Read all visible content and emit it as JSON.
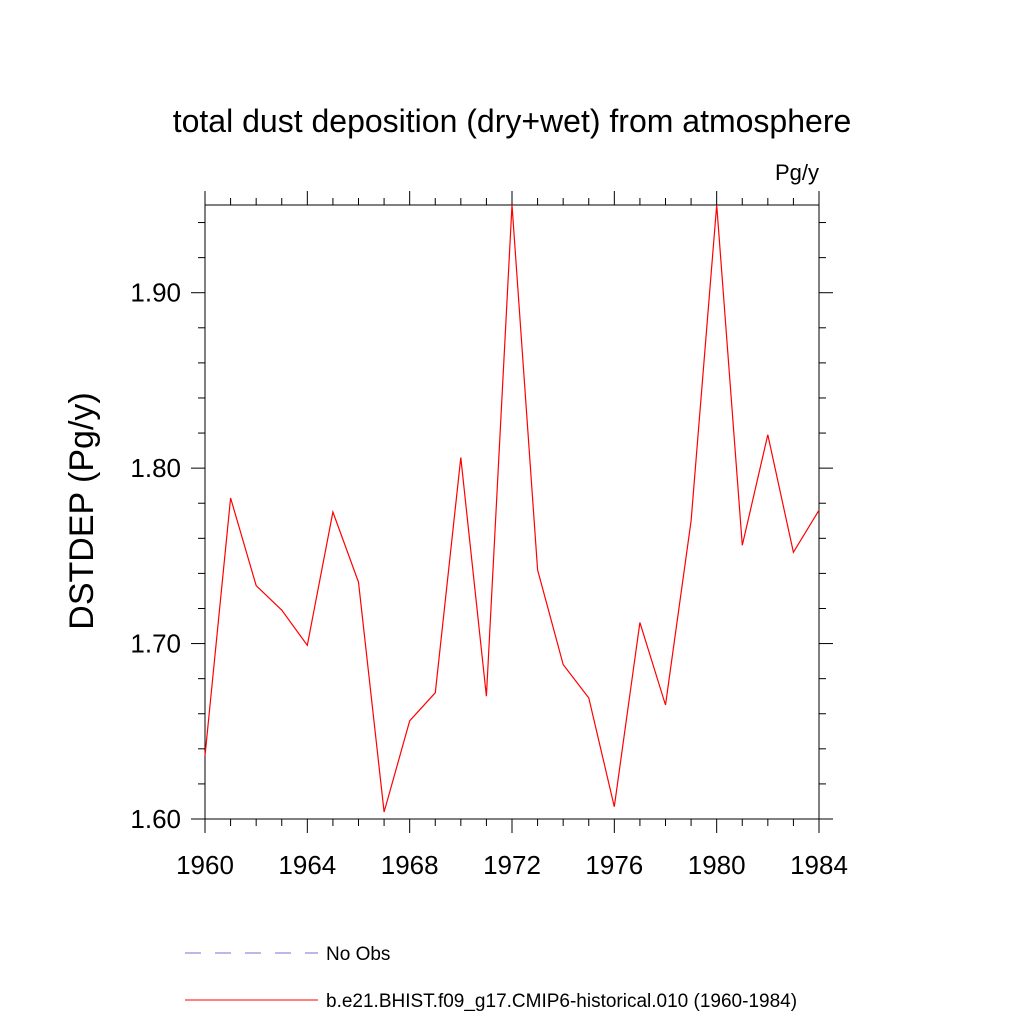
{
  "chart_data": {
    "type": "line",
    "title": "total dust deposition (dry+wet) from atmosphere",
    "units_label": "Pg/y",
    "xlabel": "",
    "ylabel": "DSTDEP  (Pg/y)",
    "xlim": [
      1960,
      1984
    ],
    "ylim": [
      1.6,
      1.95
    ],
    "xticks": [
      1960,
      1964,
      1968,
      1972,
      1976,
      1980,
      1984
    ],
    "yticks": [
      1.6,
      1.7,
      1.8,
      1.9
    ],
    "ytick_labels": [
      "1.60",
      "1.70",
      "1.80",
      "1.90"
    ],
    "x_minor_step": 1,
    "y_minor_step": 0.02,
    "grid": false,
    "legend_placement": "bottom",
    "series": [
      {
        "name": "b.e21.BHIST.f09_g17.CMIP6-historical.010 (1960-1984)",
        "color": "#ff0000",
        "style": "solid",
        "x": [
          1960,
          1961,
          1962,
          1963,
          1964,
          1965,
          1966,
          1967,
          1968,
          1969,
          1970,
          1971,
          1972,
          1973,
          1974,
          1975,
          1976,
          1977,
          1978,
          1979,
          1980,
          1981,
          1982,
          1983,
          1984
        ],
        "y": [
          1.636,
          1.783,
          1.733,
          1.719,
          1.699,
          1.775,
          1.735,
          1.604,
          1.656,
          1.672,
          1.806,
          1.67,
          1.95,
          1.742,
          1.688,
          1.669,
          1.607,
          1.712,
          1.665,
          1.77,
          1.95,
          1.756,
          1.819,
          1.752,
          1.776
        ]
      }
    ],
    "legend": [
      {
        "label": "No Obs",
        "color": "#7a6fd1",
        "style": "dashed"
      },
      {
        "label": "b.e21.BHIST.f09_g17.CMIP6-historical.010 (1960-1984)",
        "color": "#ff0000",
        "style": "solid"
      }
    ]
  }
}
